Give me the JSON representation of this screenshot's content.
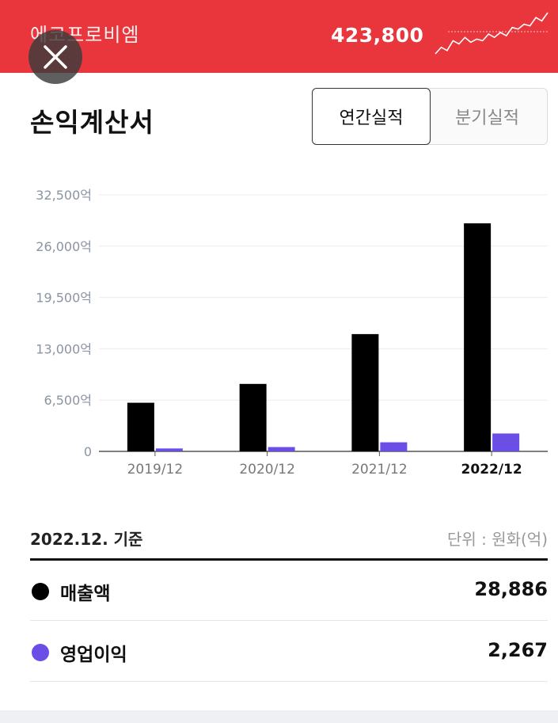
{
  "header": {
    "company": "에코프로비엠",
    "price": "423,800",
    "bg_color": "#e8363c",
    "close_icon": "close-icon",
    "sparkline_trend": [
      10,
      14,
      12,
      18,
      16,
      20,
      17,
      19,
      18,
      22,
      20,
      23,
      21,
      26,
      25,
      28,
      27,
      32,
      30,
      35
    ]
  },
  "page": {
    "title": "손익계산서"
  },
  "tabs": {
    "annual": "연간실적",
    "quarterly": "분기실적",
    "selected": "annual"
  },
  "chart_data": {
    "type": "bar",
    "categories": [
      "2019/12",
      "2020/12",
      "2021/12",
      "2022/12"
    ],
    "highlight_category": "2022/12",
    "series": [
      {
        "name": "매출액",
        "color": "#000000",
        "values": [
          6160,
          8547,
          14856,
          28886
        ]
      },
      {
        "name": "영업이익",
        "color": "#6b4ee6",
        "values": [
          371,
          548,
          1150,
          2267
        ]
      }
    ],
    "ylim": [
      0,
      32500
    ],
    "yticks": [
      0,
      6500,
      13000,
      19500,
      26000,
      32500
    ],
    "ytick_labels": [
      "0",
      "6,500억",
      "13,000억",
      "19,500억",
      "26,000억",
      "32,500억"
    ],
    "grid": true,
    "xlabel": "",
    "ylabel": ""
  },
  "summary": {
    "basis": "2022.12. 기준",
    "unit": "단위 : 원화(억)",
    "rows": [
      {
        "label": "매출액",
        "value": "28,886",
        "color": "#000000"
      },
      {
        "label": "영업이익",
        "value": "2,267",
        "color": "#6b4ee6"
      }
    ]
  }
}
